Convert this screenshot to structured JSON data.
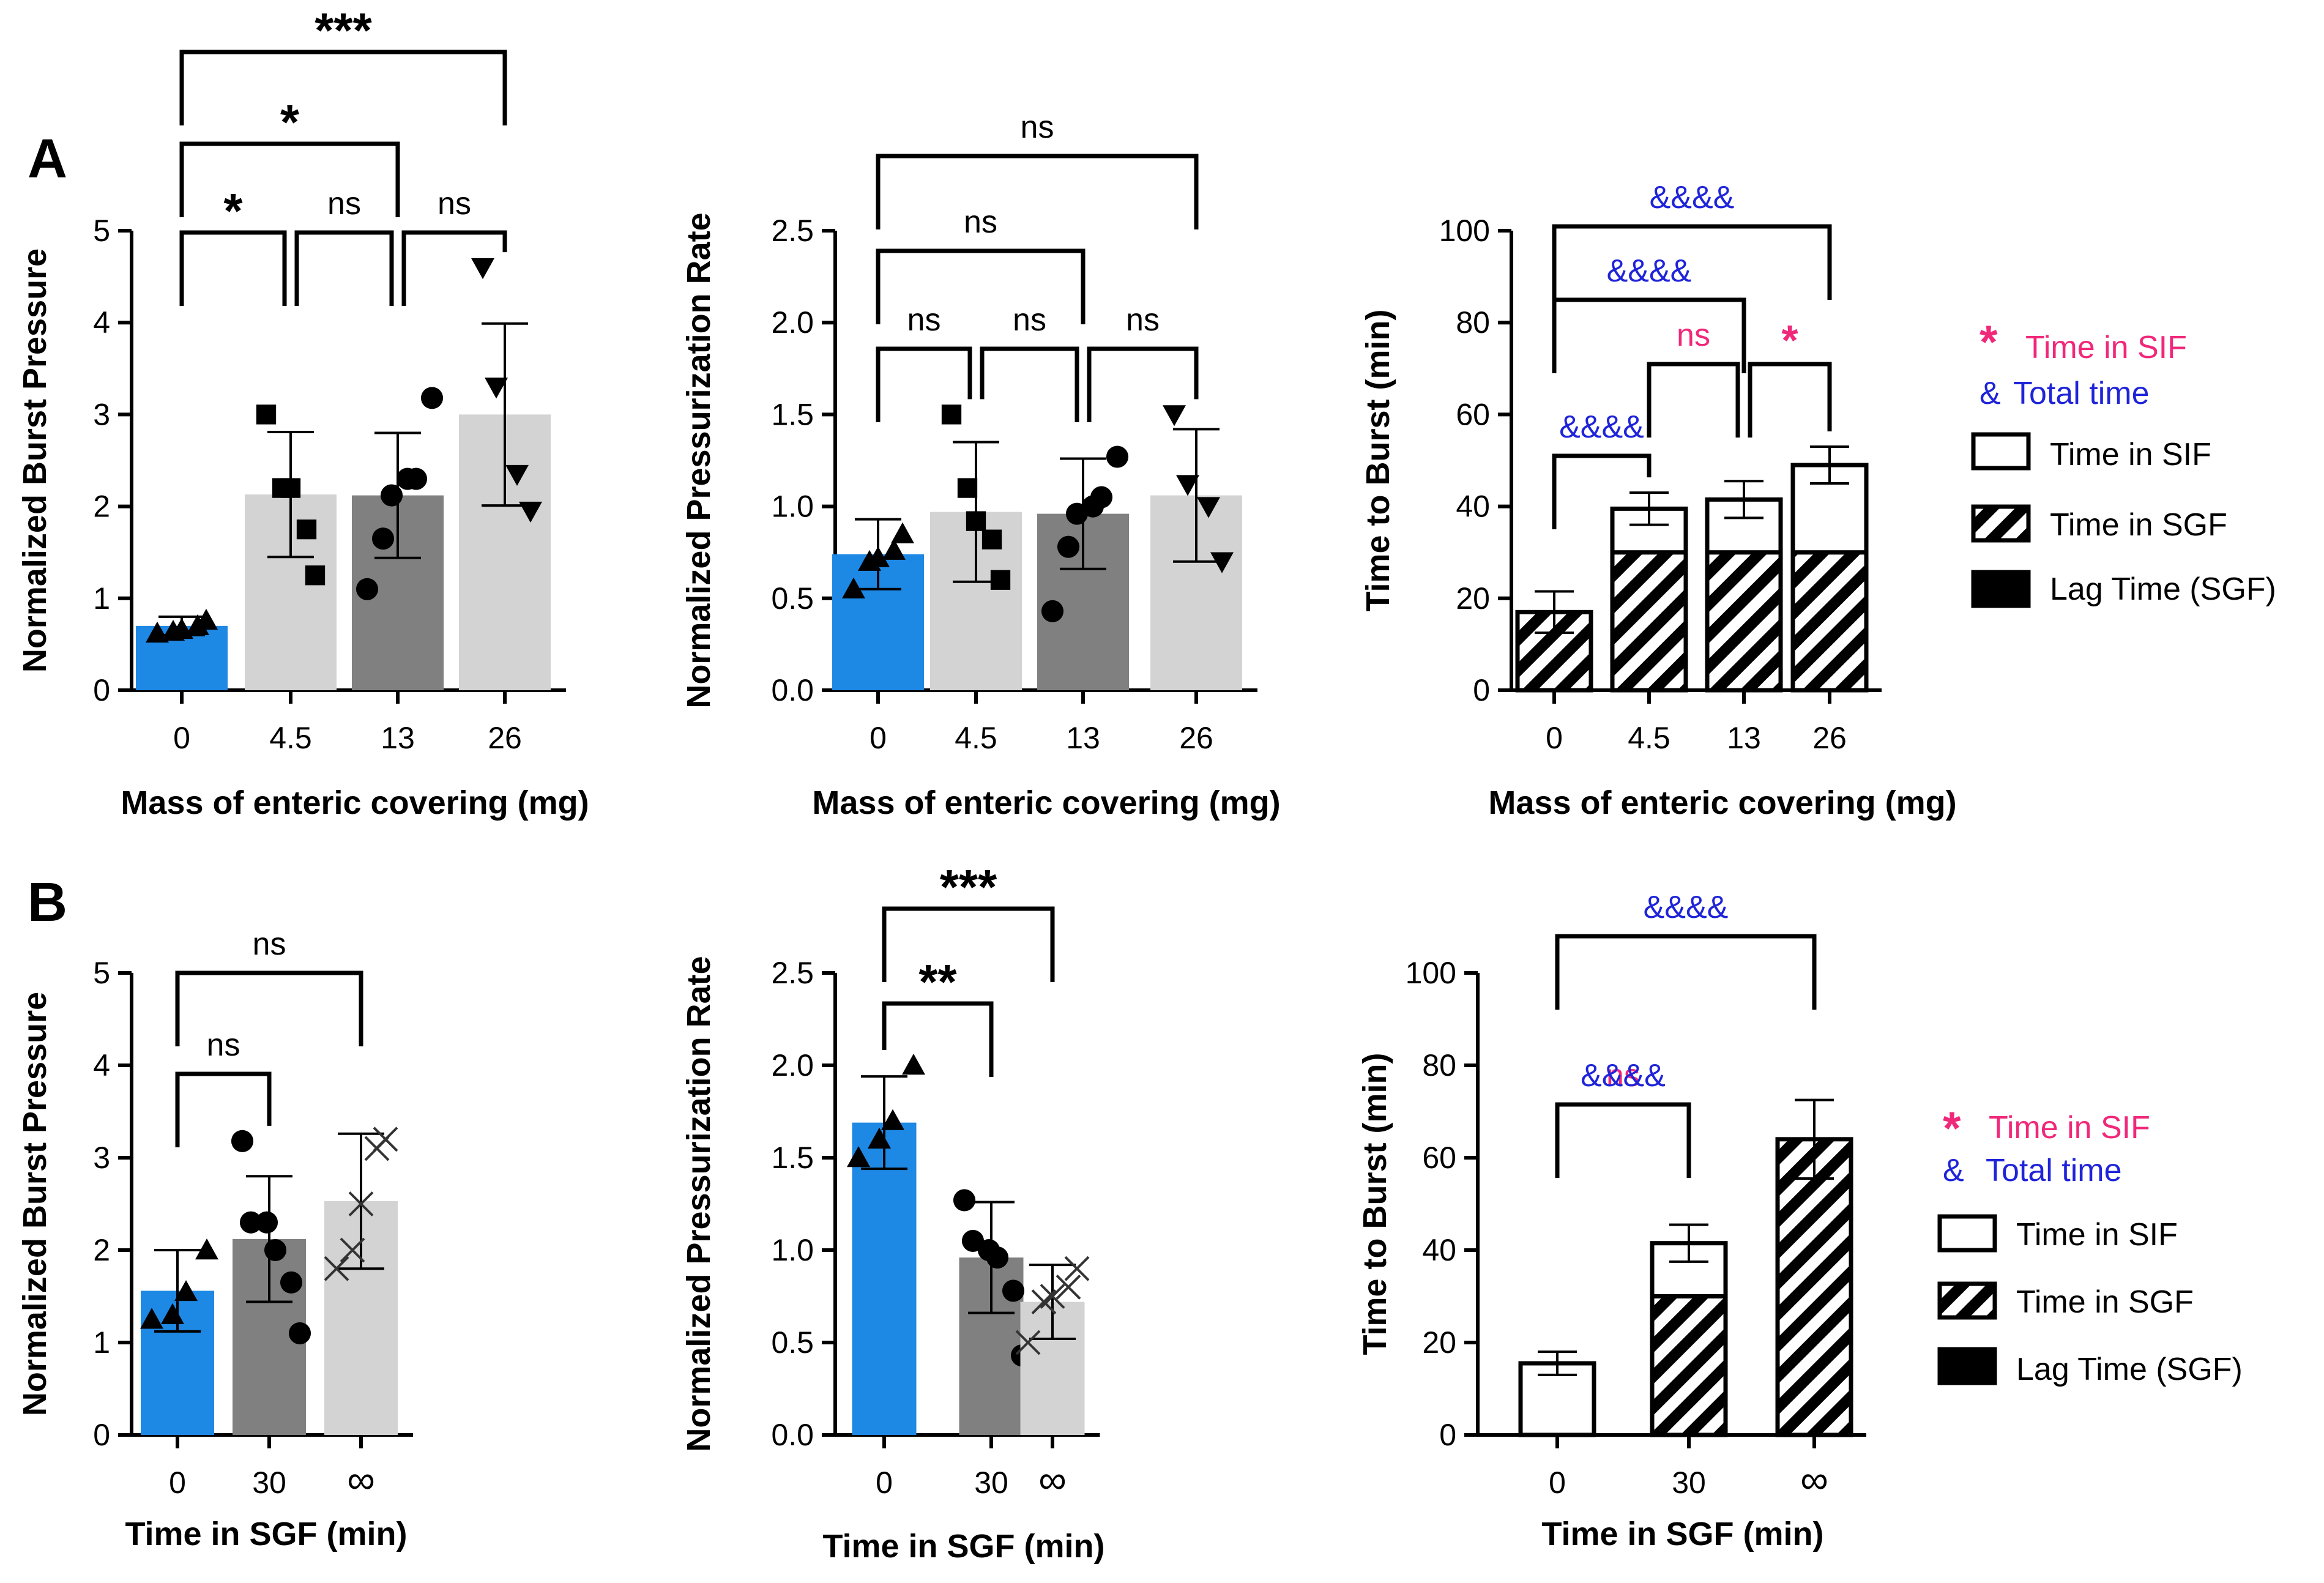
{
  "panel_labels": [
    "A",
    "B"
  ],
  "colors": {
    "blue": "#1e88e5",
    "light": "#d3d3d3",
    "dark": "#808080",
    "pink": "#f0287a",
    "amp": "#1f24d9"
  },
  "legend": {
    "sif_symbol": "*",
    "sif_text": "Time in SIF",
    "total_symbol": "&",
    "total_text": "Total time",
    "items": [
      "Time in SIF",
      "Time in SGF",
      "Lag Time (SGF)"
    ]
  },
  "chart_data": [
    {
      "id": "A1",
      "type": "bar",
      "xlabel": "Mass of enteric covering (mg)",
      "ylabel": "Normalized Burst Pressure",
      "ylim": [
        0,
        5
      ],
      "yticks": [
        "0",
        "1",
        "2",
        "3",
        "4",
        "5"
      ],
      "categories": [
        "0",
        "4.5",
        "13",
        "26"
      ],
      "values": [
        0.7,
        2.13,
        2.12,
        3.0
      ],
      "errors": [
        0.1,
        0.68,
        0.68,
        0.99
      ],
      "fills": [
        "blue",
        "light",
        "dark",
        "light"
      ],
      "markers": [
        "tri",
        "square",
        "circle",
        "tridown"
      ],
      "points": [
        [
          0.62,
          0.64,
          0.66,
          0.7,
          0.76
        ],
        [
          1.25,
          1.75,
          2.2,
          2.2,
          3.0
        ],
        [
          1.1,
          1.65,
          2.12,
          2.3,
          2.3,
          3.18
        ],
        [
          1.95,
          2.35,
          3.3,
          4.6
        ]
      ],
      "brackets": [
        {
          "from": 0,
          "to": 1,
          "label": "*"
        },
        {
          "from": 1,
          "to": 2,
          "label": "ns"
        },
        {
          "from": 2,
          "to": 3,
          "label": "ns"
        },
        {
          "from": 0,
          "to": 2,
          "label": "*"
        },
        {
          "from": 0,
          "to": 3,
          "label": "***"
        }
      ]
    },
    {
      "id": "A2",
      "type": "bar",
      "xlabel": "Mass of enteric covering (mg)",
      "ylabel": "Normalized Pressurization Rate",
      "ylim": [
        0,
        2.5
      ],
      "yticks": [
        "0.0",
        "0.5",
        "1.0",
        "1.5",
        "2.0",
        "2.5"
      ],
      "categories": [
        "0",
        "4.5",
        "13",
        "26"
      ],
      "values": [
        0.74,
        0.97,
        0.96,
        1.06
      ],
      "errors": [
        0.19,
        0.38,
        0.3,
        0.36
      ],
      "fills": [
        "blue",
        "light",
        "dark",
        "light"
      ],
      "markers": [
        "tri",
        "square",
        "circle",
        "tridown"
      ],
      "points": [
        [
          0.55,
          0.7,
          0.72,
          0.76,
          0.85
        ],
        [
          0.6,
          0.82,
          0.92,
          1.1,
          1.5
        ],
        [
          0.43,
          0.78,
          0.96,
          1.0,
          1.05,
          1.27
        ],
        [
          0.7,
          1.0,
          1.12,
          1.5
        ]
      ],
      "brackets": [
        {
          "from": 0,
          "to": 1,
          "label": "ns"
        },
        {
          "from": 1,
          "to": 2,
          "label": "ns"
        },
        {
          "from": 2,
          "to": 3,
          "label": "ns"
        },
        {
          "from": 0,
          "to": 2,
          "label": "ns"
        },
        {
          "from": 0,
          "to": 3,
          "label": "ns"
        }
      ]
    },
    {
      "id": "A3",
      "type": "stacked-bar",
      "xlabel": "Mass of enteric covering (mg)",
      "ylabel": "Time to Burst (min)",
      "ylim": [
        0,
        100
      ],
      "yticks": [
        "0",
        "20",
        "40",
        "60",
        "80",
        "100"
      ],
      "categories": [
        "0",
        "4.5",
        "13",
        "26"
      ],
      "sgf": [
        17,
        30,
        30,
        30
      ],
      "sif": [
        0,
        9.5,
        11.5,
        19
      ],
      "totals": [
        17,
        39.5,
        41.5,
        49
      ],
      "errors": [
        4.5,
        3.5,
        4,
        4
      ],
      "brackets": [
        {
          "from": 0,
          "to": 1,
          "label": "&&&&",
          "color": "amp"
        },
        {
          "from": 1,
          "to": 2,
          "label": "ns",
          "color": "pink"
        },
        {
          "from": 2,
          "to": 3,
          "label": "*",
          "color": "pink"
        },
        {
          "from": 0,
          "to": 2,
          "label": "&&&&",
          "color": "amp"
        },
        {
          "from": 0,
          "to": 3,
          "label": "&&&&",
          "color": "amp"
        }
      ]
    },
    {
      "id": "B1",
      "type": "bar",
      "xlabel": "Time in SGF (min)",
      "ylabel": "Normalized Burst Pressure",
      "ylim": [
        0,
        5
      ],
      "yticks": [
        "0",
        "1",
        "2",
        "3",
        "4",
        "5"
      ],
      "categories": [
        "0",
        "30",
        "∞"
      ],
      "values": [
        1.56,
        2.12,
        2.53
      ],
      "errors": [
        0.44,
        0.68,
        0.73
      ],
      "fills": [
        "blue",
        "dark",
        "light"
      ],
      "markers": [
        "tri",
        "circle",
        "cross"
      ],
      "points": [
        [
          1.25,
          1.3,
          1.55,
          2.0
        ],
        [
          1.1,
          1.65,
          2.0,
          2.3,
          2.3,
          3.18
        ],
        [
          1.8,
          2.0,
          2.5,
          3.1,
          3.2
        ]
      ],
      "brackets": [
        {
          "from": 0,
          "to": 1,
          "label": "ns"
        },
        {
          "from": 0,
          "to": 2,
          "label": "ns"
        }
      ]
    },
    {
      "id": "B2",
      "type": "bar",
      "xlabel": "Time in SGF (min)",
      "ylabel": "Normalized Pressurization Rate",
      "ylim": [
        0,
        2.5
      ],
      "yticks": [
        "0.0",
        "0.5",
        "1.0",
        "1.5",
        "2.0",
        "2.5"
      ],
      "categories": [
        "0",
        "30",
        "∞"
      ],
      "values": [
        1.69,
        0.96,
        0.72
      ],
      "errors": [
        0.25,
        0.3,
        0.2
      ],
      "fills": [
        "blue",
        "dark",
        "light"
      ],
      "markers": [
        "tri",
        "circle",
        "cross"
      ],
      "points": [
        [
          1.5,
          1.6,
          1.7,
          2.0
        ],
        [
          0.43,
          0.78,
          0.96,
          1.0,
          1.05,
          1.27
        ],
        [
          0.5,
          0.72,
          0.75,
          0.8,
          0.9
        ]
      ],
      "brackets": [
        {
          "from": 0,
          "to": 1,
          "label": "**"
        },
        {
          "from": 0,
          "to": 2,
          "label": "***"
        }
      ]
    },
    {
      "id": "B3",
      "type": "stacked-bar",
      "xlabel": "Time in SGF (min)",
      "ylabel": "Time to Burst (min)",
      "ylim": [
        0,
        100
      ],
      "yticks": [
        "0",
        "20",
        "40",
        "60",
        "80",
        "100"
      ],
      "categories": [
        "0",
        "30",
        "∞"
      ],
      "sgf": [
        0,
        30,
        64
      ],
      "sif": [
        15.5,
        11.5,
        0
      ],
      "totals": [
        15.5,
        41.5,
        64
      ],
      "errors": [
        2.5,
        4,
        8.5
      ],
      "brackets": [
        {
          "from": 0,
          "to": 1,
          "label": "ns",
          "color": "pink"
        },
        {
          "from": 0,
          "to": 1,
          "label": "&&&&",
          "color": "amp"
        },
        {
          "from": 0,
          "to": 2,
          "label": "&&&&",
          "color": "amp"
        }
      ]
    }
  ]
}
